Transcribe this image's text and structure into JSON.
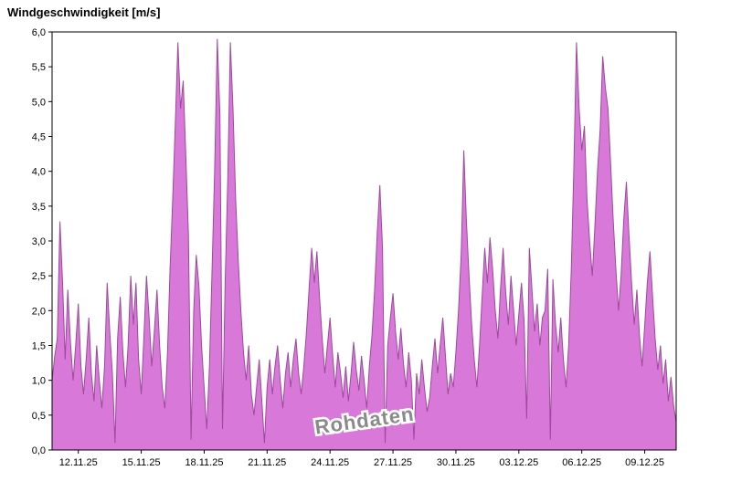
{
  "chart_data": {
    "type": "area",
    "title": "Windgeschwindigkeit [m/s]",
    "watermark": "Rohdaten",
    "xlabel": "",
    "ylabel": "Windgeschwindigkeit [m/s]",
    "ylim": [
      0,
      6
    ],
    "y_tick_step": 0.5,
    "y_tick_labels": [
      "0,0",
      "0,5",
      "1,0",
      "1,5",
      "2,0",
      "2,5",
      "3,0",
      "3,5",
      "4,0",
      "4,5",
      "5,0",
      "5,5",
      "6,0"
    ],
    "x_tick_days": [
      0,
      3,
      6,
      9,
      12,
      15,
      18,
      21,
      24,
      27
    ],
    "x_tick_labels": [
      "12.11.25",
      "15.11.25",
      "18.11.25",
      "21.11.25",
      "24.11.25",
      "27.11.25",
      "30.11.25",
      "03.12.25",
      "06.12.25",
      "09.12.25"
    ],
    "x_start_day": -1.25,
    "x_step_days": 0.125,
    "grid": false,
    "legend": "none",
    "series_color": "#d878d8",
    "series_stroke": "#9c4a9c",
    "axis_color": "#000000",
    "watermark_color": "#8a8a8a",
    "values": [
      1.0,
      1.35,
      1.6,
      3.28,
      2.4,
      1.3,
      2.3,
      1.55,
      1.0,
      1.5,
      2.1,
      1.2,
      0.8,
      1.3,
      1.9,
      1.1,
      0.7,
      1.5,
      1.0,
      0.6,
      1.2,
      2.4,
      1.7,
      1.1,
      0.1,
      1.6,
      2.2,
      1.4,
      0.9,
      1.5,
      2.5,
      1.8,
      2.4,
      1.3,
      0.8,
      1.6,
      2.5,
      1.9,
      1.2,
      1.7,
      2.3,
      1.5,
      0.9,
      0.6,
      1.4,
      2.6,
      3.6,
      4.7,
      5.85,
      4.9,
      5.3,
      4.2,
      3.1,
      0.15,
      2.0,
      2.8,
      2.35,
      1.5,
      0.9,
      0.3,
      1.2,
      2.6,
      4.0,
      5.9,
      4.8,
      0.3,
      2.4,
      3.9,
      5.85,
      4.9,
      3.6,
      2.7,
      2.0,
      1.4,
      1.0,
      1.5,
      0.8,
      0.5,
      0.9,
      1.3,
      0.7,
      0.1,
      0.9,
      1.3,
      0.8,
      1.2,
      1.5,
      1.0,
      0.6,
      1.1,
      1.4,
      0.9,
      1.3,
      1.6,
      1.1,
      0.8,
      1.2,
      1.7,
      2.3,
      2.9,
      2.4,
      2.85,
      2.2,
      1.6,
      1.1,
      1.5,
      1.9,
      1.35,
      0.9,
      1.4,
      1.1,
      0.75,
      1.2,
      0.7,
      1.1,
      1.55,
      1.15,
      0.85,
      1.35,
      1.0,
      0.6,
      1.2,
      1.65,
      2.3,
      3.1,
      3.8,
      2.9,
      0.1,
      1.5,
      1.9,
      2.25,
      1.7,
      1.3,
      1.75,
      1.25,
      0.9,
      1.4,
      1.0,
      0.15,
      1.1,
      0.8,
      1.3,
      0.9,
      0.55,
      0.75,
      1.2,
      1.6,
      1.1,
      1.5,
      1.9,
      1.35,
      0.8,
      1.1,
      0.9,
      1.4,
      2.0,
      2.8,
      4.3,
      3.3,
      2.5,
      1.8,
      1.3,
      0.9,
      1.5,
      2.2,
      2.9,
      2.4,
      3.05,
      2.6,
      2.0,
      1.6,
      2.3,
      2.9,
      2.25,
      1.8,
      2.5,
      2.0,
      1.5,
      1.95,
      2.4,
      1.85,
      0.45,
      2.9,
      2.3,
      1.7,
      2.1,
      1.5,
      1.9,
      2.0,
      2.6,
      0.15,
      2.45,
      1.8,
      1.4,
      1.9,
      1.3,
      0.9,
      1.5,
      2.6,
      4.1,
      5.85,
      4.9,
      4.3,
      4.65,
      3.6,
      3.0,
      2.5,
      3.2,
      4.0,
      4.6,
      5.65,
      5.2,
      4.9,
      4.1,
      3.3,
      2.6,
      2.0,
      2.5,
      3.3,
      3.85,
      3.1,
      2.4,
      1.8,
      2.3,
      1.65,
      1.2,
      1.8,
      2.4,
      2.85,
      2.2,
      1.6,
      1.15,
      1.5,
      0.95,
      1.3,
      0.7,
      1.05,
      0.65,
      0.4
    ]
  }
}
